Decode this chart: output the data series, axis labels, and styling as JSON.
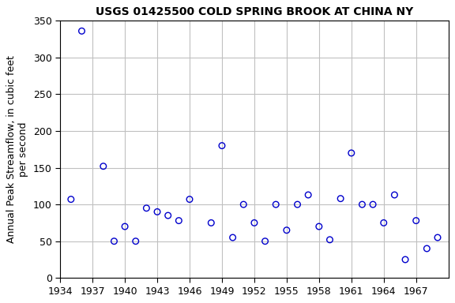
{
  "title": "USGS 01425500 COLD SPRING BROOK AT CHINA NY",
  "ylabel_line1": "Annual Peak Streamflow, in cubic feet",
  "ylabel_line2": "per second",
  "years": [
    1935,
    1936,
    1938,
    1939,
    1940,
    1941,
    1942,
    1943,
    1944,
    1945,
    1946,
    1948,
    1949,
    1950,
    1951,
    1952,
    1953,
    1954,
    1955,
    1956,
    1957,
    1958,
    1959,
    1960,
    1961,
    1962,
    1963,
    1964,
    1965,
    1966,
    1967,
    1968,
    1969
  ],
  "flows": [
    107,
    336,
    152,
    50,
    70,
    50,
    95,
    90,
    85,
    78,
    107,
    75,
    180,
    55,
    100,
    75,
    50,
    100,
    65,
    100,
    113,
    70,
    52,
    108,
    170,
    100,
    100,
    75,
    113,
    25,
    78,
    40,
    55
  ],
  "xlim": [
    1934,
    1970
  ],
  "ylim": [
    0,
    350
  ],
  "xticks": [
    1934,
    1937,
    1940,
    1943,
    1946,
    1949,
    1952,
    1955,
    1958,
    1961,
    1964,
    1967
  ],
  "yticks": [
    0,
    50,
    100,
    150,
    200,
    250,
    300,
    350
  ],
  "marker_color": "#0000cc",
  "grid_color": "#c0c0c0",
  "bg_color": "#ffffff",
  "title_fontsize": 10,
  "label_fontsize": 9,
  "tick_fontsize": 9,
  "marker_size": 30,
  "marker_lw": 1.0
}
